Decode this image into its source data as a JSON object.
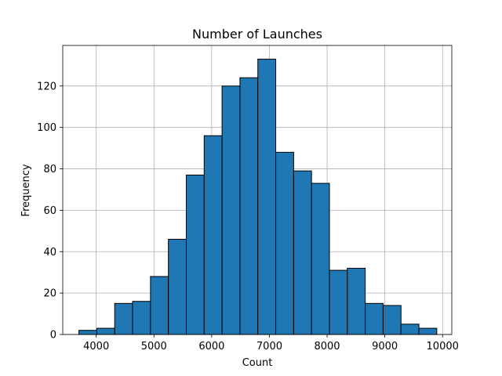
{
  "chart_data": {
    "type": "bar",
    "title": "Number of Launches",
    "xlabel": "Count",
    "ylabel": "Frequency",
    "xlim": [
      3420,
      10160
    ],
    "ylim": [
      0,
      139.6
    ],
    "grid": true,
    "bin_edges": [
      3700,
      4010,
      4320,
      4630,
      4940,
      5250,
      5560,
      5870,
      6180,
      6490,
      6800,
      7110,
      7420,
      7730,
      8040,
      8350,
      8660,
      8970,
      9280,
      9590,
      9900
    ],
    "values": [
      2,
      3,
      15,
      16,
      28,
      46,
      77,
      96,
      120,
      124,
      133,
      88,
      79,
      73,
      31,
      32,
      15,
      14,
      5,
      3
    ],
    "xticks": [
      4000,
      5000,
      6000,
      7000,
      8000,
      9000,
      10000
    ],
    "xtick_labels": [
      "4000",
      "5000",
      "6000",
      "7000",
      "8000",
      "9000",
      "10000"
    ],
    "yticks": [
      0,
      20,
      40,
      60,
      80,
      100,
      120
    ],
    "ytick_labels": [
      "0",
      "20",
      "40",
      "60",
      "80",
      "100",
      "120"
    ],
    "bar_color": "#1f77b4",
    "edge_color": "#000000",
    "grid_color": "#b0b0b0"
  }
}
